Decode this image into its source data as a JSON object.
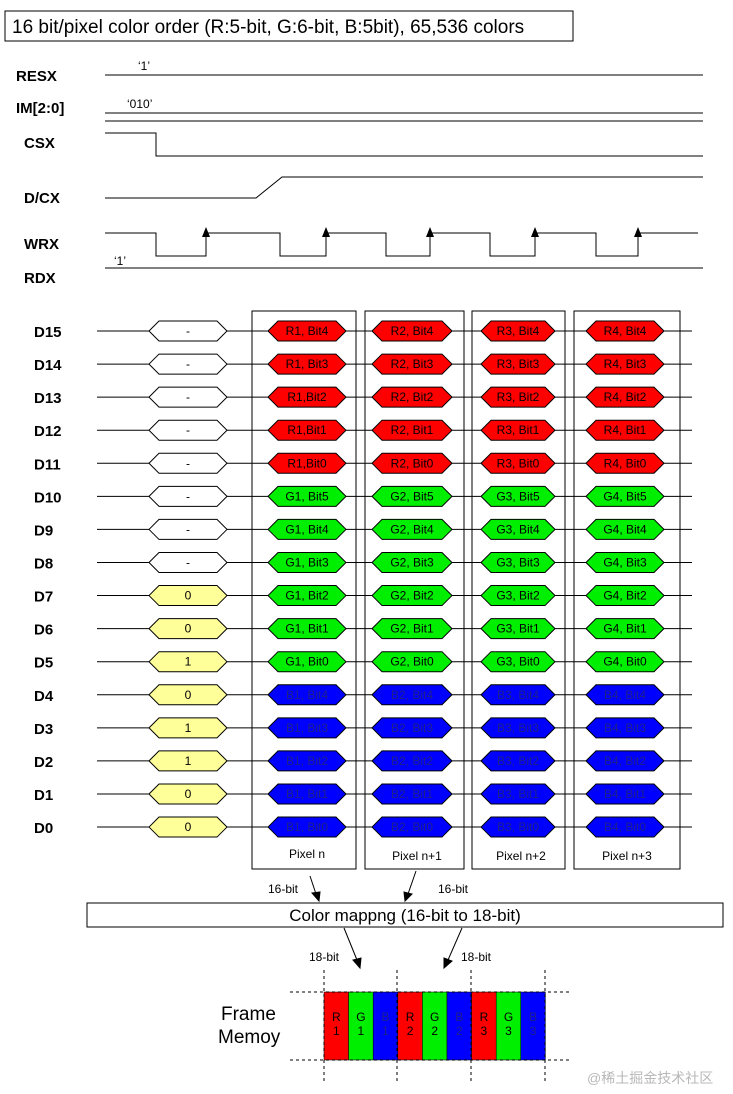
{
  "title": "16 bit/pixel color order (R:5-bit, G:6-bit, B:5bit), 65,536 colors",
  "control_signals": {
    "resx": {
      "label": "RESX",
      "value": "‘1’"
    },
    "im": {
      "label": "IM[2:0]",
      "value": "‘010’"
    },
    "csx": {
      "label": "CSX"
    },
    "dcx": {
      "label": "D/CX"
    },
    "wrx": {
      "label": "WRX"
    },
    "rdx": {
      "label": "RDX",
      "value": "‘1’"
    }
  },
  "data_bus": [
    {
      "line": "D15",
      "first": "-",
      "pixels": [
        "R1, Bit4",
        "R2, Bit4",
        "R3, Bit4",
        "R4, Bit4"
      ]
    },
    {
      "line": "D14",
      "first": "-",
      "pixels": [
        "R1, Bit3",
        "R2, Bit3",
        "R3, Bit3",
        "R4, Bit3"
      ]
    },
    {
      "line": "D13",
      "first": "-",
      "pixels": [
        "R1,Bit2",
        "R2, Bit2",
        "R3, Bit2",
        "R4, Bit2"
      ]
    },
    {
      "line": "D12",
      "first": "-",
      "pixels": [
        "R1,Bit1",
        "R2, Bit1",
        "R3, Bit1",
        "R4, Bit1"
      ]
    },
    {
      "line": "D11",
      "first": "-",
      "pixels": [
        "R1,Bit0",
        "R2, Bit0",
        "R3, Bit0",
        "R4, Bit0"
      ]
    },
    {
      "line": "D10",
      "first": "-",
      "pixels": [
        "G1, Bit5",
        "G2, Bit5",
        "G3, Bit5",
        "G4, Bit5"
      ]
    },
    {
      "line": "D9",
      "first": "-",
      "pixels": [
        "G1, Bit4",
        "G2, Bit4",
        "G3, Bit4",
        "G4, Bit4"
      ]
    },
    {
      "line": "D8",
      "first": "-",
      "pixels": [
        "G1, Bit3",
        "G2, Bit3",
        "G3, Bit3",
        "G4, Bit3"
      ]
    },
    {
      "line": "D7",
      "first": "0",
      "pixels": [
        "G1, Bit2",
        "G2, Bit2",
        "G3, Bit2",
        "G4, Bit2"
      ]
    },
    {
      "line": "D6",
      "first": "0",
      "pixels": [
        "G1, Bit1",
        "G2, Bit1",
        "G3, Bit1",
        "G4, Bit1"
      ]
    },
    {
      "line": "D5",
      "first": "1",
      "pixels": [
        "G1, Bit0",
        "G2, Bit0",
        "G3, Bit0",
        "G4, Bit0"
      ]
    },
    {
      "line": "D4",
      "first": "0",
      "pixels": [
        "B1, Bit4",
        "B2, Bit4",
        "B3, Bit4",
        "B4, Bit4"
      ]
    },
    {
      "line": "D3",
      "first": "1",
      "pixels": [
        "B1, Bit3",
        "B2, Bit3",
        "B3, Bit3",
        "B4, Bit3"
      ]
    },
    {
      "line": "D2",
      "first": "1",
      "pixels": [
        "B1, Bit2",
        "B2, Bit2",
        "B3, Bit2",
        "B4, Bit2"
      ]
    },
    {
      "line": "D1",
      "first": "0",
      "pixels": [
        "B1, Bit1",
        "B2, Bit1",
        "B3, Bit1",
        "B4, Bit1"
      ]
    },
    {
      "line": "D0",
      "first": "0",
      "pixels": [
        "B1, Bit0",
        "B2, Bit0",
        "B3, Bit0",
        "B4, Bit0"
      ]
    }
  ],
  "pixel_labels": [
    "Pixel n",
    "Pixel n+1",
    "Pixel n+2",
    "Pixel n+3"
  ],
  "mapping": {
    "label": "Color mappng  (16-bit to 18-bit)",
    "in_label_1": "16-bit",
    "in_label_2": "16-bit",
    "out_label_1": "18-bit",
    "out_label_2": "18-bit"
  },
  "frame_memory": {
    "label_line1": "Frame",
    "label_line2": "Memoy",
    "cells": [
      {
        "top": "R",
        "bottom": "1",
        "channel": "red"
      },
      {
        "top": "G",
        "bottom": "1",
        "channel": "green"
      },
      {
        "top": "B",
        "bottom": "1",
        "channel": "blue"
      },
      {
        "top": "R",
        "bottom": "2",
        "channel": "red"
      },
      {
        "top": "G",
        "bottom": "2",
        "channel": "green"
      },
      {
        "top": "B",
        "bottom": "2",
        "channel": "blue"
      },
      {
        "top": "R",
        "bottom": "3",
        "channel": "red"
      },
      {
        "top": "G",
        "bottom": "3",
        "channel": "green"
      },
      {
        "top": "B",
        "bottom": "3",
        "channel": "blue"
      }
    ]
  },
  "watermark": "@稀土掘金技术社区",
  "colors": {
    "red": "#ff0000",
    "green": "#00ee00",
    "blue": "#0000ff",
    "yellow": "#ffff99",
    "line": "#000000",
    "watermark": "#b8b8b8"
  }
}
